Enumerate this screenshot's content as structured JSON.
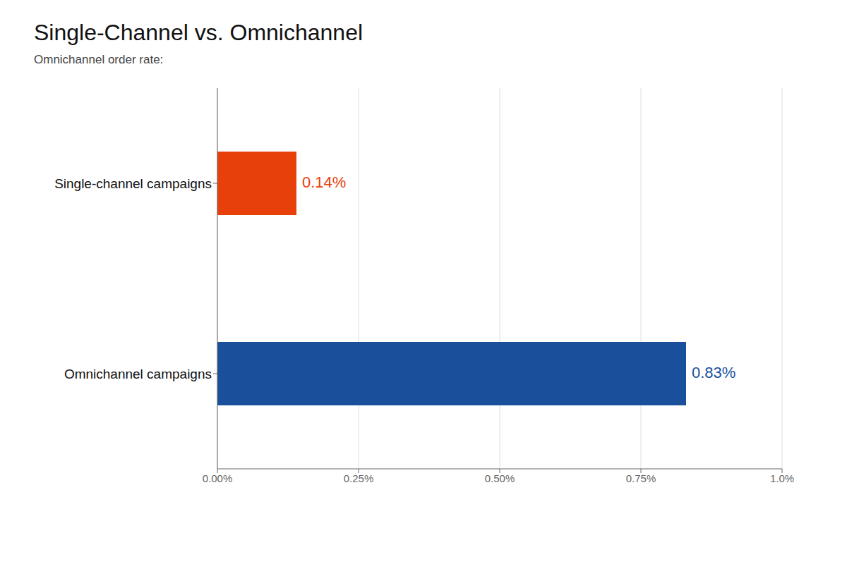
{
  "chart_data": {
    "type": "bar",
    "orientation": "horizontal",
    "title": "Single-Channel vs. Omnichannel",
    "subtitle": "Omnichannel order rate:",
    "categories": [
      "Single-channel campaigns",
      "Omnichannel campaigns"
    ],
    "values": [
      0.0014,
      0.0083
    ],
    "value_labels": [
      "0.14%",
      "0.83%"
    ],
    "data_labels": true,
    "colors": [
      "#e8400a",
      "#1a4f9c"
    ],
    "xlim": [
      0,
      0.01
    ],
    "xticks": [
      {
        "value": 0.0,
        "label": "0.00%"
      },
      {
        "value": 0.0025,
        "label": "0.25%"
      },
      {
        "value": 0.005,
        "label": "0.50%"
      },
      {
        "value": 0.0075,
        "label": "0.75%"
      },
      {
        "value": 0.01,
        "label": "1.0%"
      }
    ],
    "grid": true
  }
}
